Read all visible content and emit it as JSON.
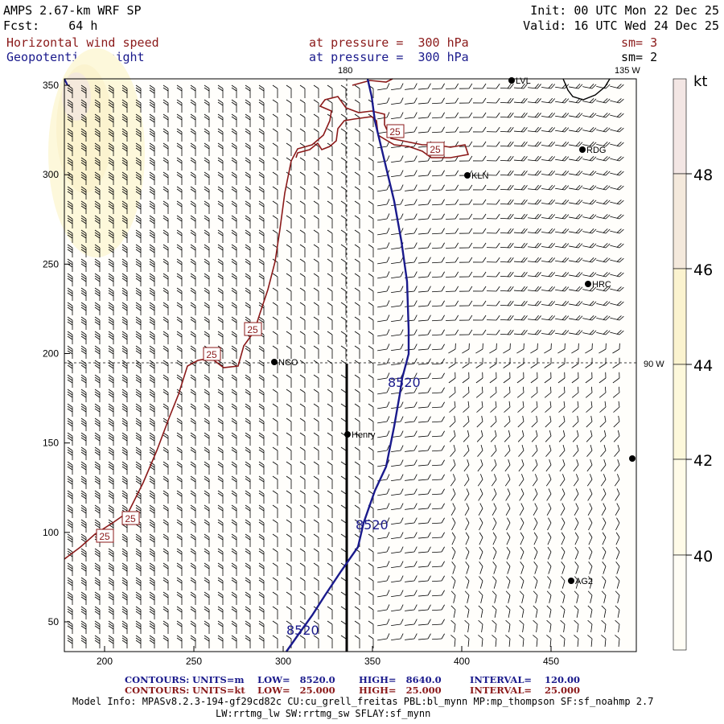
{
  "header": {
    "title": "AMPS 2.67-km WRF SP",
    "fcst": "Fcst:    64 h",
    "init": "Init: 00 UTC Mon 22 Dec 25",
    "valid": "Valid: 16 UTC Wed 24 Dec 25",
    "field1": "Horizontal wind speed",
    "field1_level": "at pressure =  300 hPa",
    "field1_sm": "sm= 3",
    "field2": "Geopotential height",
    "field2_level": "at pressure =  300 hPa",
    "field2_sm": "sm= 2"
  },
  "map": {
    "x_ticks": [
      "200",
      "250",
      "300",
      "350",
      "400",
      "450"
    ],
    "y_ticks": [
      "350",
      "300",
      "250",
      "200",
      "150",
      "100",
      "50"
    ],
    "meridian_labels": {
      "top_180": "180",
      "top_135w": "135 W",
      "right_90w": "90 W"
    },
    "stations": [
      "LVL",
      "RDG",
      "KLN",
      "HRC",
      "NCO",
      "Henry",
      "AG2"
    ],
    "height_contour_label": "8520",
    "wind_contour_label": "25"
  },
  "colorbar": {
    "unit": "kt",
    "labels": [
      "48",
      "46",
      "44",
      "42",
      "40"
    ],
    "colors": {
      "48": "#f3e6e4",
      "46": "#f4e9dc",
      "44": "#fbf3cf",
      "42": "#fdf8db",
      "40": "#fffbe8",
      "low": "#fffdf5"
    }
  },
  "footer": {
    "c1_label": "CONTOURS:",
    "c1_units": "UNITS=m",
    "c1_low": "LOW=   8520.0",
    "c1_high": "HIGH=   8640.0",
    "c1_interval": "INTERVAL=    120.00",
    "c2_label": "CONTOURS:",
    "c2_units": "UNITS=kt",
    "c2_low": "LOW=   25.000",
    "c2_high": "HIGH=   25.000",
    "c2_interval": "INTERVAL=    25.000",
    "model_info": "Model Info: MPASv8.2.3-194-gf29cd82c CU:cu_grell_freitas PBL:bl_mynn MP:mp_thompson SF:sf_noahmp 2.7",
    "model_info2": "LW:rrtmg_lw SW:rrtmg_sw SFLAY:sf_mynn"
  }
}
